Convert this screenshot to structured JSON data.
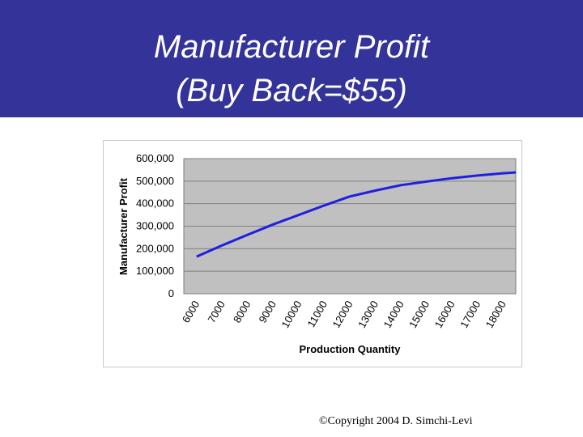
{
  "title": {
    "line1": "Manufacturer Profit",
    "line2": "(Buy Back=$55)"
  },
  "footer": {
    "copyright": "©Copyright 2004 D. Simchi-Levi"
  },
  "colors": {
    "header_bg": "#333399",
    "plot_bg": "#c0c0c0",
    "series": "#1f1fe0"
  },
  "chart_data": {
    "type": "line",
    "xlabel": "Production Quantity",
    "ylabel": "Manufacturer Profit",
    "x_ticks": [
      "6000",
      "7000",
      "8000",
      "9000",
      "10000",
      "11000",
      "12000",
      "13000",
      "14000",
      "15000",
      "16000",
      "17000",
      "18000"
    ],
    "y_ticks": [
      "0",
      "100,000",
      "200,000",
      "300,000",
      "400,000",
      "500,000",
      "600,000"
    ],
    "ylim": [
      0,
      600000
    ],
    "grid": true,
    "legend": "none",
    "series": [
      {
        "x": [
          6000,
          7000,
          8000,
          9000,
          10000,
          11000,
          12000,
          13000,
          14000,
          15000,
          16000,
          17000,
          18000,
          18500
        ],
        "values": [
          165000,
          215000,
          262000,
          308000,
          350000,
          392000,
          432000,
          458000,
          482000,
          498000,
          513000,
          525000,
          535000,
          539000
        ]
      }
    ]
  }
}
